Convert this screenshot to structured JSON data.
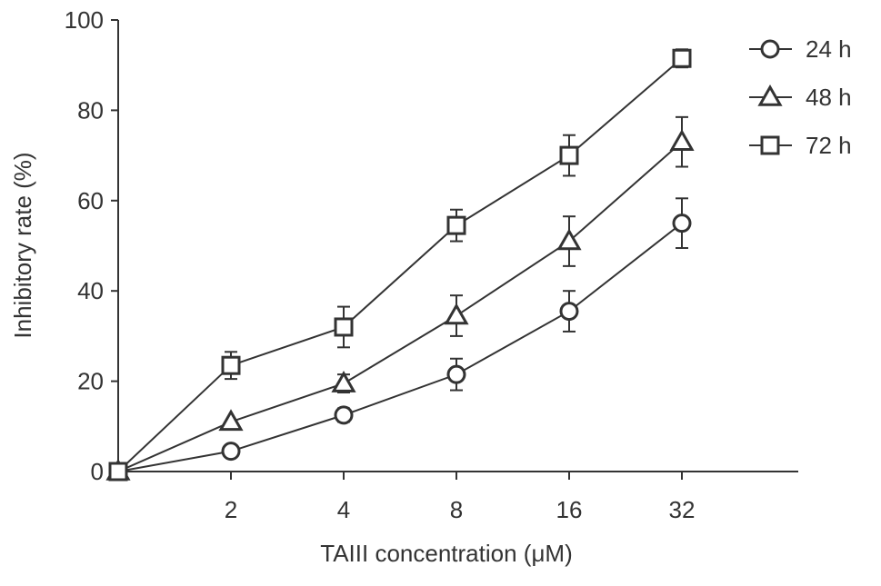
{
  "chart_data": {
    "type": "line",
    "xlabel": "TAIII concentration  (μM)",
    "ylabel": "Inhibitory rate (%)",
    "ylim": [
      0,
      100
    ],
    "yticks": [
      "0",
      "20",
      "40",
      "60",
      "80",
      "100"
    ],
    "categories": [
      "",
      "2",
      "4",
      "8",
      "16",
      "32"
    ],
    "x_scale": "ordinal",
    "grid": false,
    "legend_position": "top-right",
    "series": [
      {
        "name": "24 h",
        "marker": "circle",
        "values": [
          0,
          4.5,
          12.5,
          21.5,
          35.5,
          55
        ],
        "errors": [
          0,
          0,
          1.5,
          3.5,
          4.5,
          5.5
        ]
      },
      {
        "name": "48 h",
        "marker": "triangle",
        "values": [
          0,
          11,
          19.5,
          34.5,
          51,
          73
        ],
        "errors": [
          0,
          0,
          2,
          4.5,
          5.5,
          5.5
        ]
      },
      {
        "name": "72 h",
        "marker": "square",
        "values": [
          0,
          23.5,
          32,
          54.5,
          70,
          91.5
        ],
        "errors": [
          0,
          3,
          4.5,
          3.5,
          4.5,
          2
        ]
      }
    ]
  }
}
